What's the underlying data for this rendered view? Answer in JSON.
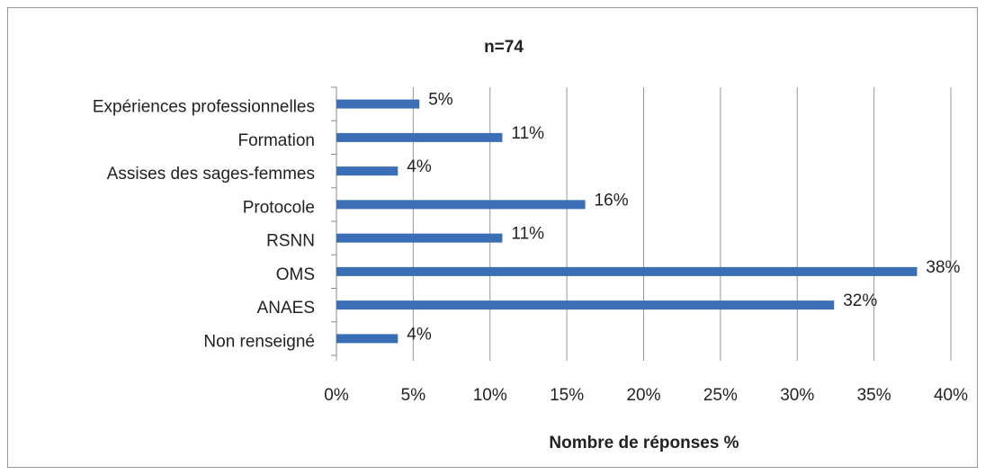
{
  "chart_data": {
    "type": "hbar",
    "title": "n=74",
    "x_label": "Nombre de réponses %",
    "categories": [
      "Expériences professionnelles",
      "Formation",
      "Assises des sages-femmes",
      "Protocole",
      "RSNN",
      "OMS",
      "ANAES",
      "Non renseigné"
    ],
    "values": [
      5.4,
      10.8,
      4.0,
      16.2,
      10.8,
      37.8,
      32.4,
      4.0
    ],
    "value_labels": [
      "5%",
      "11%",
      "4%",
      "16%",
      "11%",
      "38%",
      "32%",
      "4%"
    ],
    "color": "#3a6eb5",
    "xlim": [
      0,
      40
    ],
    "xticks": [
      {
        "value": 0,
        "label": "0%"
      },
      {
        "value": 5,
        "label": "5%"
      },
      {
        "value": 10,
        "label": "10%"
      },
      {
        "value": 15,
        "label": "15%"
      },
      {
        "value": 20,
        "label": "20%"
      },
      {
        "value": 25,
        "label": "25%"
      },
      {
        "value": 30,
        "label": "30%"
      },
      {
        "value": 35,
        "label": "35%"
      },
      {
        "value": 40,
        "label": "40%"
      }
    ],
    "grid": true
  }
}
